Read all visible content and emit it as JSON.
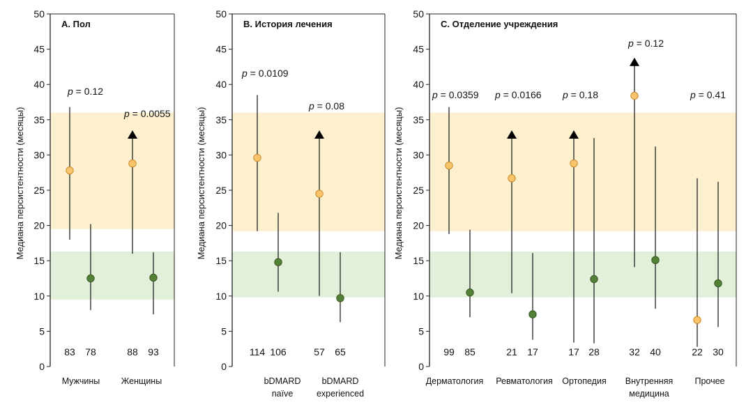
{
  "ylabel": "Медиана персистентности (месяцы)",
  "y_ticks": [
    "0",
    "5",
    "10",
    "15",
    "20",
    "25",
    "30",
    "35",
    "40",
    "45",
    "50"
  ],
  "colors": {
    "orange_band": "#fdf0cf",
    "green_band": "#e2efd9",
    "orange_marker": "#f9c46b",
    "orange_marker_stroke": "#c98a2a",
    "green_marker": "#538135",
    "green_marker_stroke": "#375623",
    "line": "#222222",
    "frame": "#222222"
  },
  "chart_data": [
    {
      "type": "scatter",
      "title": "A. Пол",
      "ylim": [
        0,
        50
      ],
      "orange_band_range": [
        19.5,
        36
      ],
      "green_band_range": [
        9.5,
        16.3
      ],
      "categories": [
        {
          "label": [
            "Мужчины"
          ],
          "p_value": "= 0.12"
        },
        {
          "label": [
            "Женщины"
          ],
          "p_value": "= 0.0055"
        }
      ],
      "points": [
        {
          "category": 0,
          "color": "orange",
          "median": 27.8,
          "low": 18.0,
          "high": 36.8,
          "arrow": false,
          "n": "83"
        },
        {
          "category": 0,
          "color": "green",
          "median": 12.5,
          "low": 8.0,
          "high": 20.2,
          "arrow": false,
          "n": "78"
        },
        {
          "category": 1,
          "color": "orange",
          "median": 28.8,
          "low": 16.0,
          "high": 33.5,
          "arrow": true,
          "n": "88"
        },
        {
          "category": 1,
          "color": "green",
          "median": 12.6,
          "low": 7.4,
          "high": 16.2,
          "arrow": false,
          "n": "93"
        }
      ]
    },
    {
      "type": "scatter",
      "title": "B. История лечения",
      "ylim": [
        0,
        50
      ],
      "orange_band_range": [
        19.2,
        36
      ],
      "green_band_range": [
        9.8,
        16.3
      ],
      "categories": [
        {
          "label": [
            "bDMARD",
            "naïve"
          ],
          "p_value": "= 0.0109"
        },
        {
          "label": [
            "bDMARD",
            "experienced"
          ],
          "p_value": "= 0.08"
        }
      ],
      "points": [
        {
          "category": 0,
          "color": "orange",
          "median": 29.6,
          "low": 19.2,
          "high": 38.5,
          "arrow": false,
          "n": "114"
        },
        {
          "category": 0,
          "color": "green",
          "median": 14.8,
          "low": 10.6,
          "high": 21.8,
          "arrow": false,
          "n": "106"
        },
        {
          "category": 1,
          "color": "orange",
          "median": 24.5,
          "low": 10.0,
          "high": 33.5,
          "arrow": true,
          "n": "57"
        },
        {
          "category": 1,
          "color": "green",
          "median": 9.7,
          "low": 6.3,
          "high": 16.2,
          "arrow": false,
          "n": "65"
        }
      ]
    },
    {
      "type": "scatter",
      "title": "C. Отделение учреждения",
      "ylim": [
        0,
        50
      ],
      "orange_band_range": [
        19.2,
        36
      ],
      "green_band_range": [
        9.8,
        16.3
      ],
      "categories": [
        {
          "label": [
            "Дерматология"
          ],
          "p_value": "= 0.0359"
        },
        {
          "label": [
            "Ревматология"
          ],
          "p_value": "= 0.0166"
        },
        {
          "label": [
            "Ортопедия"
          ],
          "p_value": "= 0.18"
        },
        {
          "label": [
            "Внутренняя",
            "медицина"
          ],
          "p_value": "= 0.12"
        },
        {
          "label": [
            "Прочее"
          ],
          "p_value": "= 0.41"
        }
      ],
      "points": [
        {
          "category": 0,
          "color": "orange",
          "median": 28.5,
          "low": 18.8,
          "high": 36.8,
          "arrow": false,
          "n": "99"
        },
        {
          "category": 0,
          "color": "green",
          "median": 10.5,
          "low": 7.0,
          "high": 19.4,
          "arrow": false,
          "n": "85"
        },
        {
          "category": 1,
          "color": "orange",
          "median": 26.7,
          "low": 10.4,
          "high": 33.5,
          "arrow": true,
          "n": "21"
        },
        {
          "category": 1,
          "color": "green",
          "median": 7.4,
          "low": 3.8,
          "high": 16.1,
          "arrow": false,
          "n": "17"
        },
        {
          "category": 2,
          "color": "orange",
          "median": 28.8,
          "low": 3.4,
          "high": 33.5,
          "arrow": true,
          "n": "17"
        },
        {
          "category": 2,
          "color": "green",
          "median": 12.4,
          "low": 3.3,
          "high": 32.4,
          "arrow": false,
          "n": "28"
        },
        {
          "category": 3,
          "color": "orange",
          "median": 38.4,
          "low": 14.1,
          "high": 43.8,
          "arrow": true,
          "n": "32"
        },
        {
          "category": 3,
          "color": "green",
          "median": 15.1,
          "low": 8.2,
          "high": 31.2,
          "arrow": false,
          "n": "40"
        },
        {
          "category": 4,
          "color": "orange",
          "median": 6.6,
          "low": 2.8,
          "high": 26.7,
          "arrow": false,
          "n": "22"
        },
        {
          "category": 4,
          "color": "green",
          "median": 11.8,
          "low": 5.6,
          "high": 26.2,
          "arrow": false,
          "n": "30"
        }
      ]
    }
  ]
}
